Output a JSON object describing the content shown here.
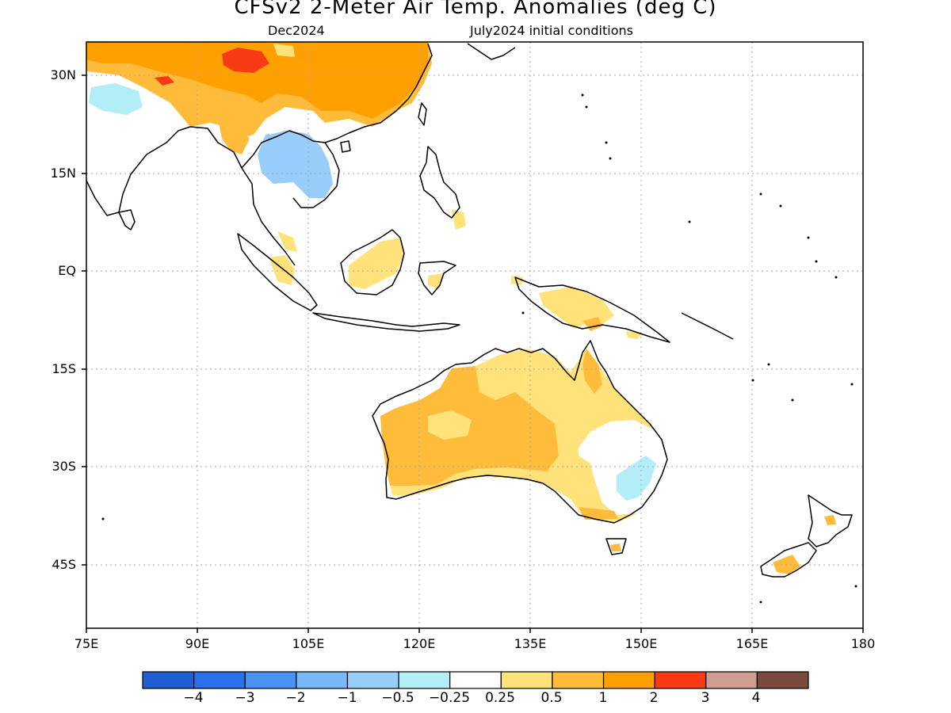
{
  "header": {
    "title": "CFSv2 2-Meter Air Temp. Anomalies (deg C)",
    "target_month": "Dec2024",
    "initial_conditions": "July2024 initial conditions"
  },
  "map": {
    "latitude_labels": [
      "30N",
      "15N",
      "EQ",
      "15S",
      "30S",
      "45S"
    ],
    "longitude_labels": [
      "75E",
      "90E",
      "105E",
      "120E",
      "135E",
      "150E",
      "165E",
      "180"
    ],
    "lon_range": [
      75,
      180
    ],
    "lat_range": [
      -55,
      35
    ]
  },
  "colorbar": {
    "colors": [
      "#1f5fd2",
      "#2b70ea",
      "#4a93f5",
      "#78b7f8",
      "#98cdf9",
      "#b3eef8",
      "#ffffff",
      "#ffe27a",
      "#ffbc3b",
      "#ff9f00",
      "#f83b14",
      "#cf9e90",
      "#7a4b3c"
    ],
    "labels": [
      "−4",
      "−3",
      "−2",
      "−1",
      "−0.5",
      "−0.25",
      "0.25",
      "0.5",
      "1",
      "2",
      "3",
      "4"
    ]
  }
}
